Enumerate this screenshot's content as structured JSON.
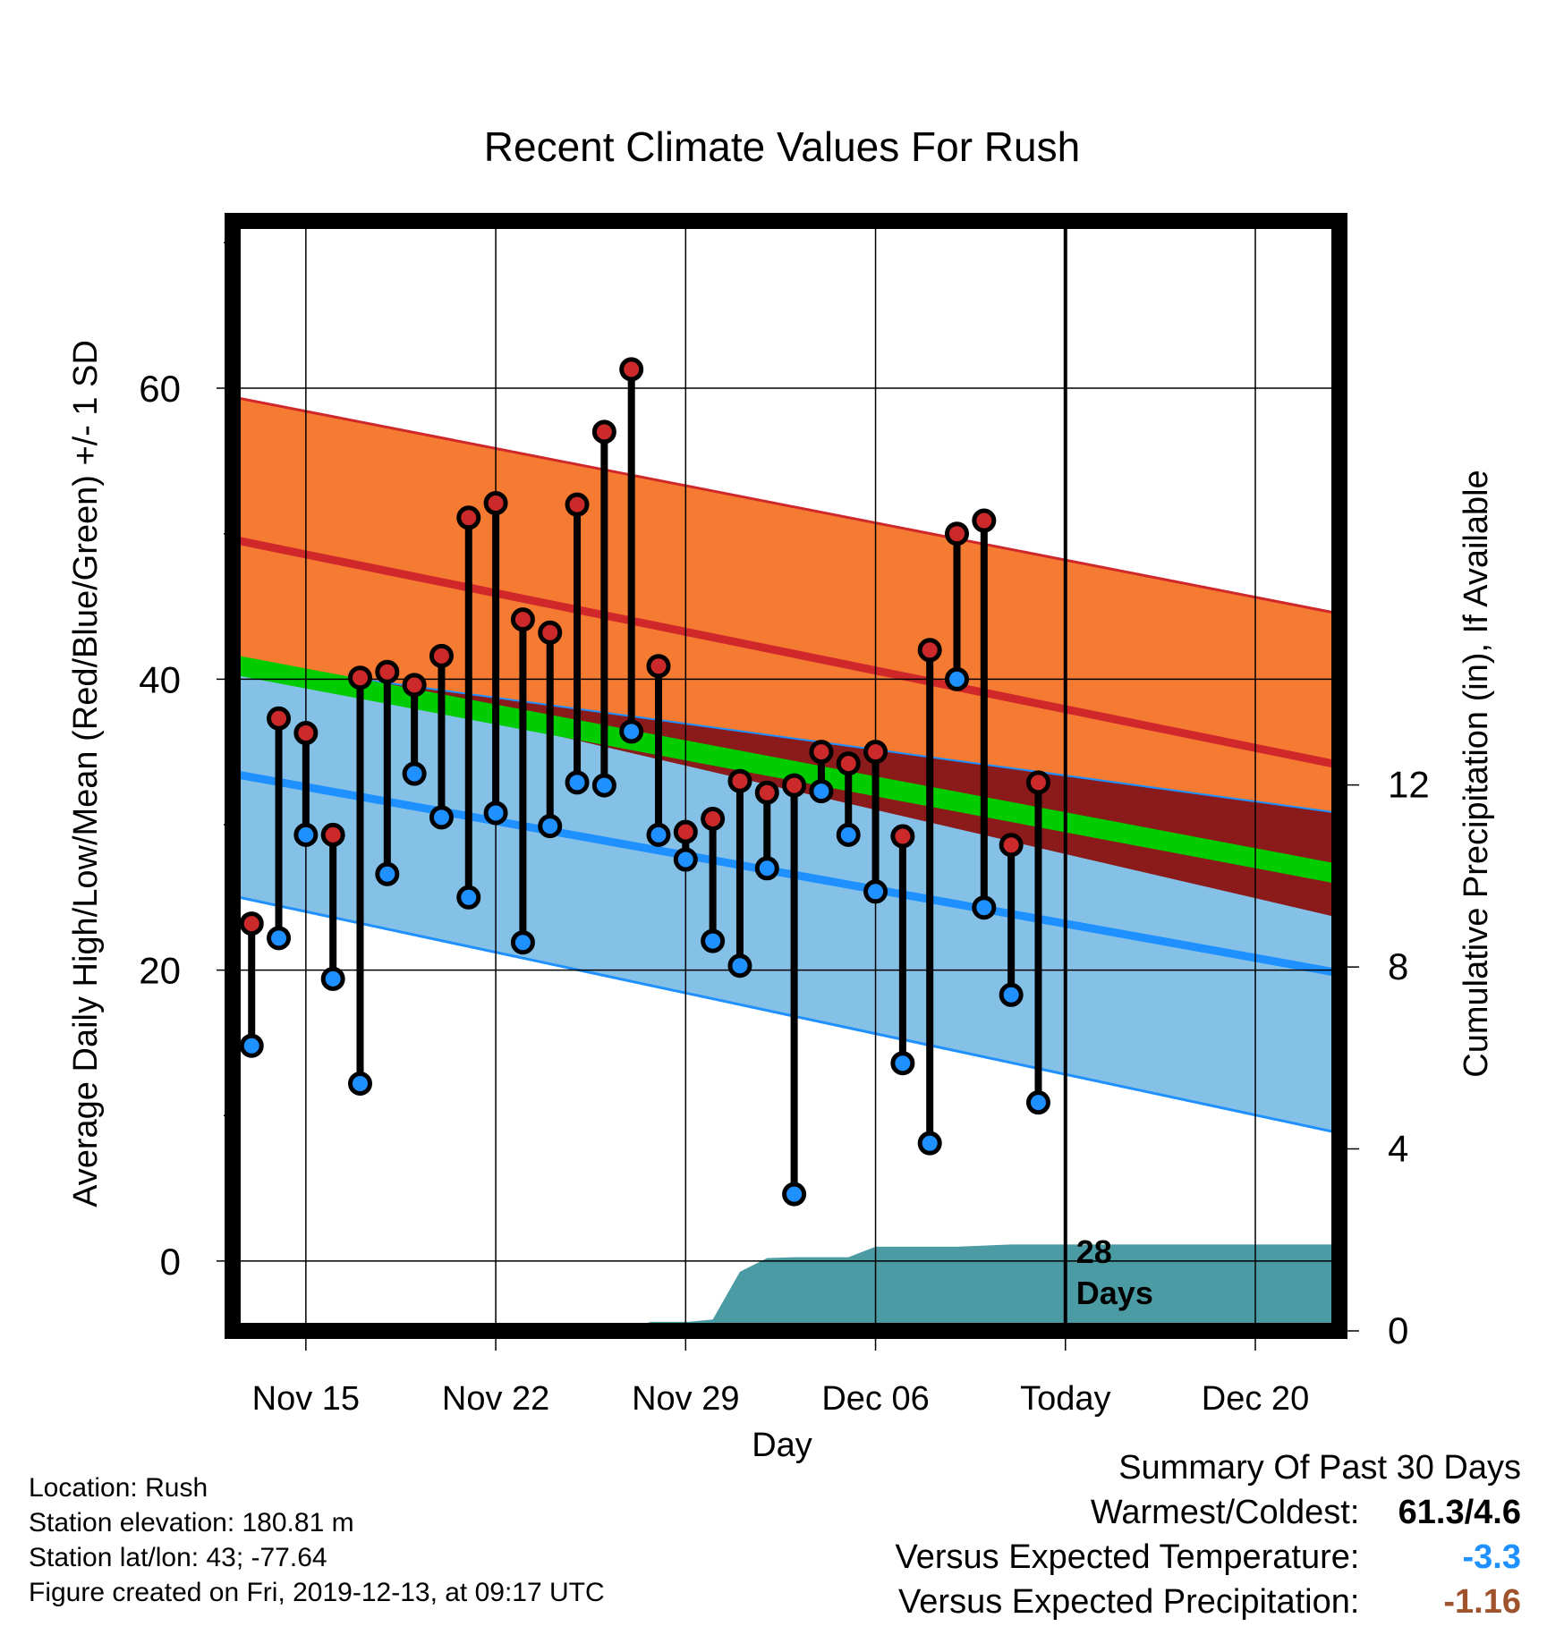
{
  "title": "Recent Climate Values For Rush",
  "chart_data": {
    "type": "line",
    "title": "Recent Climate Values For Rush",
    "xlabel": "Day",
    "ylabel": "Average Daily High/Low/Mean (Red/Blue/Green) +/- 1 SD",
    "y2label": "Cumulative Precipitation (in), If Available",
    "x_tick_labels": [
      "Nov 15",
      "Nov 22",
      "Nov 29",
      "Dec 06",
      "Today",
      "Dec 20"
    ],
    "x_tick_days": [
      2,
      9,
      16,
      23,
      30,
      37
    ],
    "xlim": [
      -0.7,
      40.1
    ],
    "y_ticks": [
      0,
      20,
      40,
      60
    ],
    "ylim": [
      -4.8,
      71.5
    ],
    "y2_ticks": [
      0,
      4,
      8,
      12
    ],
    "y2lim": [
      0,
      24.4
    ],
    "today_day": 30,
    "today_annotation": [
      "28",
      "Days"
    ],
    "days": [
      0,
      1,
      2,
      3,
      4,
      5,
      6,
      7,
      8,
      9,
      10,
      11,
      12,
      13,
      14,
      15,
      16,
      17,
      18,
      19,
      20,
      21,
      22,
      23,
      24,
      25,
      26,
      27,
      28,
      29
    ],
    "series": [
      {
        "name": "High",
        "color": "#cc2a2a",
        "values": [
          23.2,
          37.3,
          36.3,
          29.3,
          40.1,
          40.5,
          39.6,
          41.6,
          51.1,
          52.1,
          44.1,
          43.2,
          52.0,
          57.0,
          61.3,
          40.9,
          29.5,
          30.4,
          33.0,
          32.2,
          32.7,
          35.0,
          34.2,
          35.0,
          29.2,
          42.0,
          50.0,
          50.9,
          28.6,
          32.9
        ]
      },
      {
        "name": "Low",
        "color": "#1e90ff",
        "values": [
          14.8,
          22.2,
          29.3,
          19.4,
          12.2,
          26.6,
          33.5,
          30.5,
          25.0,
          30.8,
          21.9,
          29.9,
          32.9,
          32.7,
          36.4,
          29.3,
          27.6,
          22.0,
          20.3,
          27.0,
          4.6,
          32.3,
          29.3,
          25.4,
          13.6,
          8.1,
          40.0,
          24.3,
          18.3,
          10.9
        ]
      },
      {
        "name": "Expected high",
        "color": "#d0282a",
        "x": [
          -0.7,
          40.1
        ],
        "values": [
          49.6,
          34.1
        ],
        "band_lower": [
          41.3,
          23.6
        ],
        "band_upper": [
          59.4,
          44.5
        ],
        "band_color": "#f57a32"
      },
      {
        "name": "Expected low",
        "color": "#1e90ff",
        "x": [
          -0.7,
          40.1
        ],
        "values": [
          33.5,
          19.8
        ],
        "band_lower": [
          25.1,
          8.8
        ],
        "band_upper": [
          41.2,
          30.8
        ],
        "band_color": "#85c1e6"
      },
      {
        "name": "Expected mean",
        "color": "#00cc00",
        "x": [
          -0.7,
          40.1
        ],
        "values": [
          41.0,
          26.6
        ],
        "band_color": "#8b1a1a"
      },
      {
        "name": "Cumulative precipitation",
        "color": "#4a9ba3",
        "axis": "right",
        "x": [
          13.7,
          14.7,
          16.1,
          17.0,
          18.0,
          19.0,
          20.0,
          21.0,
          22.0,
          23.0,
          24.0,
          26.0,
          28.0,
          30.0,
          40.1
        ],
        "values": [
          0.0,
          0.2,
          0.2,
          0.25,
          1.3,
          1.6,
          1.62,
          1.62,
          1.62,
          1.85,
          1.85,
          1.85,
          1.9,
          1.9,
          1.9
        ]
      }
    ],
    "grid": true
  },
  "info": {
    "location": "Location: Rush",
    "elevation": "Station elevation: 180.81 m",
    "latlon": "Station lat/lon: 43; -77.64",
    "created": "Figure created on Fri, 2019-12-13, at 09:17 UTC"
  },
  "summary": {
    "heading": "Summary Of Past 30 Days",
    "warmest_label": "Warmest/Coldest:",
    "warmest_value": "61.3/4.6",
    "temp_label": "Versus Expected Temperature:",
    "temp_value": "-3.3",
    "temp_color": "#1e90ff",
    "precip_label": "Versus Expected Precipitation:",
    "precip_value": "-1.16",
    "precip_color": "#a0522d"
  }
}
